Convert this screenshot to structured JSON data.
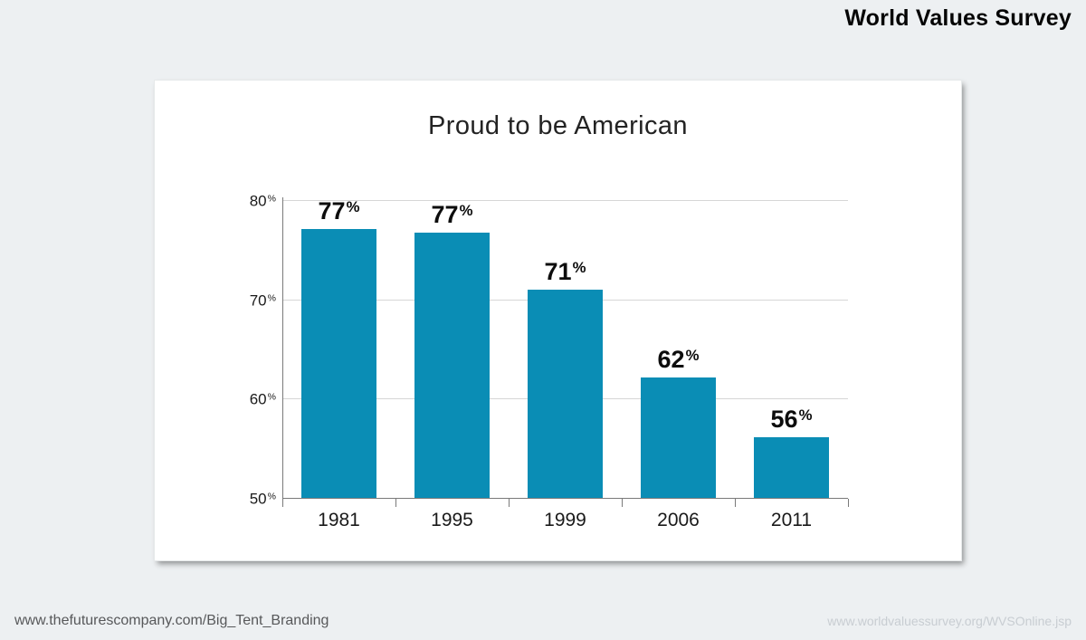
{
  "page": {
    "header_title": "World Values Survey",
    "footer_left": "www.thefuturescompany.com/Big_Tent_Branding",
    "footer_right": "www.worldvaluessurvey.org/WVSOnline.jsp",
    "background_color": "#edf0f2",
    "card_color": "#ffffff"
  },
  "chart_data": {
    "type": "bar",
    "title": "Proud to be American",
    "categories": [
      "1981",
      "1995",
      "1999",
      "2006",
      "2011"
    ],
    "values": [
      77,
      77,
      71,
      62,
      56
    ],
    "plotted_values": [
      77.2,
      76.8,
      71.1,
      62.2,
      56.2
    ],
    "value_label_suffix": "%",
    "y_ticks": [
      50,
      60,
      70,
      80
    ],
    "y_tick_suffix": "%",
    "ylim": [
      50,
      80
    ],
    "xlabel": "",
    "ylabel": "",
    "grid": "horizontal-light",
    "legend": "none",
    "bar_width_fraction_of_category": 0.66,
    "colors": {
      "bar": "#0a8db5",
      "axis": "#7a7a7a",
      "gridline": "#d6d6d6",
      "value_label": "#0d0d0d",
      "tick_label": "#1a1a1a"
    }
  }
}
